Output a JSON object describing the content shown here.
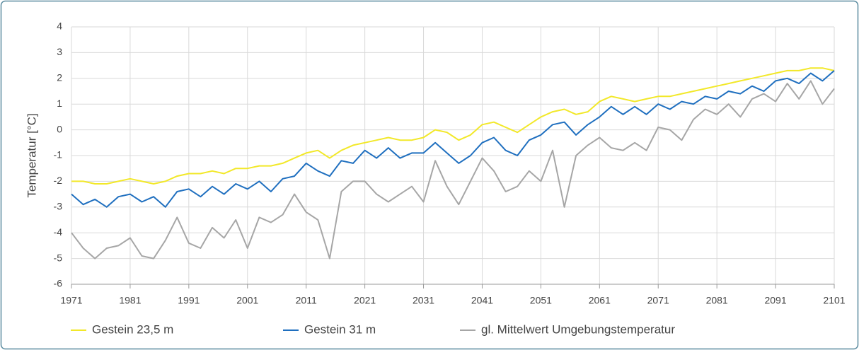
{
  "chart_data": {
    "type": "line",
    "ylabel": "Temperatur [°C]",
    "x": [
      1971,
      1973,
      1975,
      1977,
      1979,
      1981,
      1983,
      1985,
      1987,
      1989,
      1991,
      1993,
      1995,
      1997,
      1999,
      2001,
      2003,
      2005,
      2007,
      2009,
      2011,
      2013,
      2015,
      2017,
      2019,
      2021,
      2023,
      2025,
      2027,
      2029,
      2031,
      2033,
      2035,
      2037,
      2039,
      2041,
      2043,
      2045,
      2047,
      2049,
      2051,
      2053,
      2055,
      2057,
      2059,
      2061,
      2063,
      2065,
      2067,
      2069,
      2071,
      2073,
      2075,
      2077,
      2079,
      2081,
      2083,
      2085,
      2087,
      2089,
      2091,
      2093,
      2095,
      2097,
      2099,
      2101
    ],
    "series": [
      {
        "name": "Gestein 23,5 m",
        "color": "#f2e829",
        "values": [
          -2.0,
          -2.0,
          -2.1,
          -2.1,
          -2.0,
          -1.9,
          -2.0,
          -2.1,
          -2.0,
          -1.8,
          -1.7,
          -1.7,
          -1.6,
          -1.7,
          -1.5,
          -1.5,
          -1.4,
          -1.4,
          -1.3,
          -1.1,
          -0.9,
          -0.8,
          -1.1,
          -0.8,
          -0.6,
          -0.5,
          -0.4,
          -0.3,
          -0.4,
          -0.4,
          -0.3,
          0.0,
          -0.1,
          -0.4,
          -0.2,
          0.2,
          0.3,
          0.1,
          -0.1,
          0.2,
          0.5,
          0.7,
          0.8,
          0.6,
          0.7,
          1.1,
          1.3,
          1.2,
          1.1,
          1.2,
          1.3,
          1.3,
          1.4,
          1.5,
          1.6,
          1.7,
          1.8,
          1.9,
          2.0,
          2.1,
          2.2,
          2.3,
          2.3,
          2.4,
          2.4,
          2.3
        ]
      },
      {
        "name": "Gestein 31 m",
        "color": "#1f6fbf",
        "values": [
          -2.5,
          -2.9,
          -2.7,
          -3.0,
          -2.6,
          -2.5,
          -2.8,
          -2.6,
          -3.0,
          -2.4,
          -2.3,
          -2.6,
          -2.2,
          -2.5,
          -2.1,
          -2.3,
          -2.0,
          -2.4,
          -1.9,
          -1.8,
          -1.3,
          -1.6,
          -1.8,
          -1.2,
          -1.3,
          -0.8,
          -1.1,
          -0.7,
          -1.1,
          -0.9,
          -0.9,
          -0.5,
          -0.9,
          -1.3,
          -1.0,
          -0.5,
          -0.3,
          -0.8,
          -1.0,
          -0.4,
          -0.2,
          0.2,
          0.3,
          -0.2,
          0.2,
          0.5,
          0.9,
          0.6,
          0.9,
          0.6,
          1.0,
          0.8,
          1.1,
          1.0,
          1.3,
          1.2,
          1.5,
          1.4,
          1.7,
          1.5,
          1.9,
          2.0,
          1.8,
          2.2,
          1.9,
          2.3
        ]
      },
      {
        "name": "gl. Mittelwert Umgebungstemperatur",
        "color": "#a6a6a6",
        "values": [
          -4.0,
          -4.6,
          -5.0,
          -4.6,
          -4.5,
          -4.2,
          -4.9,
          -5.0,
          -4.3,
          -3.4,
          -4.4,
          -4.6,
          -3.8,
          -4.2,
          -3.5,
          -4.6,
          -3.4,
          -3.6,
          -3.3,
          -2.5,
          -3.2,
          -3.5,
          -5.0,
          -2.4,
          -2.0,
          -2.0,
          -2.5,
          -2.8,
          -2.5,
          -2.2,
          -2.8,
          -1.2,
          -2.2,
          -2.9,
          -2.0,
          -1.1,
          -1.6,
          -2.4,
          -2.2,
          -1.6,
          -2.0,
          -0.8,
          -3.0,
          -1.0,
          -0.6,
          -0.3,
          -0.7,
          -0.8,
          -0.5,
          -0.8,
          0.1,
          0.0,
          -0.4,
          0.4,
          0.8,
          0.6,
          1.0,
          0.5,
          1.2,
          1.4,
          1.1,
          1.8,
          1.2,
          1.9,
          1.0,
          1.6
        ]
      }
    ],
    "xlim": [
      1971,
      2101
    ],
    "xticks": [
      1971,
      1981,
      1991,
      2001,
      2011,
      2021,
      2031,
      2041,
      2051,
      2061,
      2071,
      2081,
      2091,
      2101
    ],
    "ylim": [
      -6,
      4
    ],
    "yticks": [
      -6,
      -5,
      -4,
      -3,
      -2,
      -1,
      0,
      1,
      2,
      3,
      4
    ],
    "grid": true
  }
}
